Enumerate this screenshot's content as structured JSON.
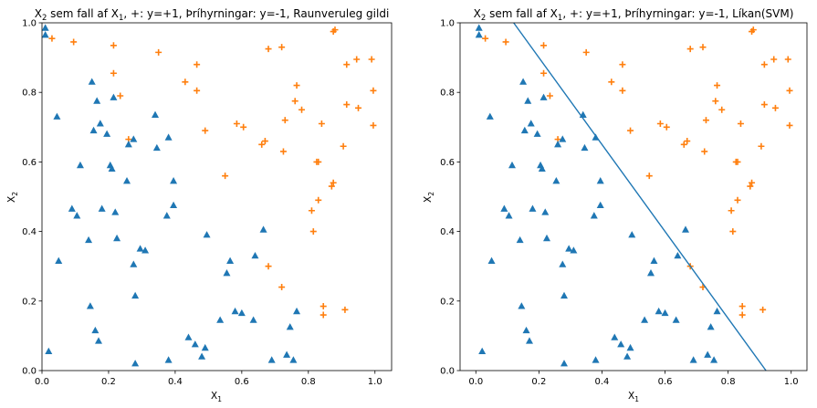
{
  "chart_data": [
    {
      "type": "scatter",
      "title_parts": {
        "pre": "X",
        "pre_sub": "2",
        "mid": " sem fall af X",
        "mid_sub": "1",
        "post": ", +: y=+1, Þríhyrningar: y=-1, Raunveruleg gildi"
      },
      "xlabel": {
        "main": "X",
        "sub": "1"
      },
      "ylabel": {
        "main": "X",
        "sub": "2"
      },
      "xlim": [
        0,
        1.05
      ],
      "ylim": [
        0,
        1
      ],
      "xticks": [
        "0.0",
        "0.2",
        "0.4",
        "0.6",
        "0.8",
        "1.0"
      ],
      "yticks": [
        "0.0",
        "0.2",
        "0.4",
        "0.6",
        "0.8",
        "1.0"
      ],
      "grid": false,
      "series": [
        {
          "marker": "plus",
          "color": "#ff7f0e",
          "points": [
            [
              0.03,
              0.955
            ],
            [
              0.095,
              0.945
            ],
            [
              0.215,
              0.935
            ],
            [
              0.215,
              0.855
            ],
            [
              0.35,
              0.915
            ],
            [
              0.235,
              0.79
            ],
            [
              0.26,
              0.665
            ],
            [
              0.43,
              0.83
            ],
            [
              0.465,
              0.88
            ],
            [
              0.465,
              0.805
            ],
            [
              0.49,
              0.69
            ],
            [
              0.55,
              0.56
            ],
            [
              0.585,
              0.71
            ],
            [
              0.605,
              0.7
            ],
            [
              0.66,
              0.65
            ],
            [
              0.67,
              0.66
            ],
            [
              0.68,
              0.925
            ],
            [
              0.72,
              0.93
            ],
            [
              0.725,
              0.63
            ],
            [
              0.73,
              0.72
            ],
            [
              0.76,
              0.775
            ],
            [
              0.765,
              0.82
            ],
            [
              0.78,
              0.75
            ],
            [
              0.81,
              0.46
            ],
            [
              0.815,
              0.4
            ],
            [
              0.825,
              0.6
            ],
            [
              0.83,
              0.6
            ],
            [
              0.84,
              0.71
            ],
            [
              0.83,
              0.49
            ],
            [
              0.87,
              0.53
            ],
            [
              0.875,
              0.54
            ],
            [
              0.875,
              0.975
            ],
            [
              0.88,
              0.98
            ],
            [
              0.905,
              0.645
            ],
            [
              0.915,
              0.88
            ],
            [
              0.915,
              0.765
            ],
            [
              0.945,
              0.895
            ],
            [
              0.95,
              0.755
            ],
            [
              0.99,
              0.895
            ],
            [
              0.995,
              0.805
            ],
            [
              0.995,
              0.705
            ],
            [
              0.68,
              0.3
            ],
            [
              0.72,
              0.24
            ],
            [
              0.845,
              0.185
            ],
            [
              0.845,
              0.16
            ],
            [
              0.91,
              0.175
            ]
          ]
        },
        {
          "marker": "triangle",
          "color": "#1f77b4",
          "points": [
            [
              0.01,
              0.985
            ],
            [
              0.01,
              0.965
            ],
            [
              0.045,
              0.73
            ],
            [
              0.05,
              0.315
            ],
            [
              0.02,
              0.055
            ],
            [
              0.09,
              0.465
            ],
            [
              0.105,
              0.445
            ],
            [
              0.115,
              0.59
            ],
            [
              0.14,
              0.375
            ],
            [
              0.15,
              0.83
            ],
            [
              0.165,
              0.775
            ],
            [
              0.175,
              0.71
            ],
            [
              0.155,
              0.69
            ],
            [
              0.145,
              0.185
            ],
            [
              0.16,
              0.115
            ],
            [
              0.17,
              0.085
            ],
            [
              0.18,
              0.465
            ],
            [
              0.195,
              0.68
            ],
            [
              0.205,
              0.59
            ],
            [
              0.21,
              0.58
            ],
            [
              0.215,
              0.785
            ],
            [
              0.22,
              0.455
            ],
            [
              0.225,
              0.38
            ],
            [
              0.255,
              0.545
            ],
            [
              0.26,
              0.65
            ],
            [
              0.275,
              0.665
            ],
            [
              0.275,
              0.305
            ],
            [
              0.28,
              0.215
            ],
            [
              0.28,
              0.02
            ],
            [
              0.295,
              0.35
            ],
            [
              0.31,
              0.345
            ],
            [
              0.34,
              0.735
            ],
            [
              0.345,
              0.64
            ],
            [
              0.38,
              0.67
            ],
            [
              0.375,
              0.445
            ],
            [
              0.395,
              0.475
            ],
            [
              0.395,
              0.545
            ],
            [
              0.38,
              0.03
            ],
            [
              0.44,
              0.095
            ],
            [
              0.46,
              0.075
            ],
            [
              0.48,
              0.04
            ],
            [
              0.49,
              0.065
            ],
            [
              0.495,
              0.39
            ],
            [
              0.535,
              0.145
            ],
            [
              0.555,
              0.28
            ],
            [
              0.565,
              0.315
            ],
            [
              0.58,
              0.17
            ],
            [
              0.6,
              0.165
            ],
            [
              0.635,
              0.145
            ],
            [
              0.64,
              0.33
            ],
            [
              0.665,
              0.405
            ],
            [
              0.69,
              0.03
            ],
            [
              0.735,
              0.045
            ],
            [
              0.745,
              0.125
            ],
            [
              0.765,
              0.17
            ],
            [
              0.755,
              0.03
            ]
          ]
        }
      ]
    },
    {
      "type": "scatter",
      "title_parts": {
        "pre": "X",
        "pre_sub": "2",
        "mid": " sem fall af X",
        "mid_sub": "1",
        "post": ", +: y=+1, Þríhyrningar: y=-1, Líkan(SVM)"
      },
      "xlabel": {
        "main": "X",
        "sub": "1"
      },
      "ylabel": {
        "main": "X",
        "sub": "2"
      },
      "xlim": [
        -0.05,
        1.05
      ],
      "ylim": [
        0,
        1
      ],
      "xticks": [
        "0.0",
        "0.2",
        "0.4",
        "0.6",
        "0.8",
        "1.0"
      ],
      "yticks": [
        "0.0",
        "0.2",
        "0.4",
        "0.6",
        "0.8",
        "1.0"
      ],
      "grid": false,
      "decision_line": {
        "color": "#1f77b4",
        "x": [
          0.12,
          0.92
        ],
        "y": [
          1.0,
          0.0
        ]
      },
      "series_ref": "same points as left chart"
    }
  ]
}
